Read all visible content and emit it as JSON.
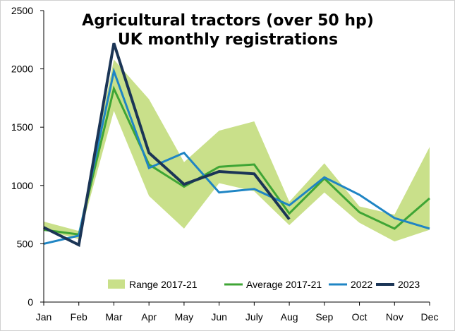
{
  "chart_data": {
    "type": "line",
    "title": "Agricultural tractors (over 50 hp)",
    "subtitle": "UK monthly registrations",
    "xlabel": "",
    "ylabel": "",
    "categories": [
      "Jan",
      "Feb",
      "Mar",
      "Apr",
      "May",
      "Jun",
      "July",
      "Aug",
      "Sep",
      "Oct",
      "Nov",
      "Dec"
    ],
    "ylim": [
      0,
      2500
    ],
    "yticks": [
      0,
      500,
      1000,
      1500,
      2000,
      2500
    ],
    "grid": false,
    "legend_position": "bottom-inside",
    "range": {
      "name": "Range 2017-21",
      "color": "#c9e08a",
      "min": [
        620,
        540,
        1640,
        910,
        630,
        1020,
        950,
        660,
        940,
        680,
        520,
        620
      ],
      "max": [
        690,
        610,
        2080,
        1740,
        1200,
        1470,
        1550,
        860,
        1190,
        820,
        750,
        1330
      ]
    },
    "series": [
      {
        "name": "Average 2017-21",
        "color": "#3fa535",
        "width": 3,
        "values": [
          620,
          580,
          1830,
          1180,
          990,
          1160,
          1180,
          760,
          1060,
          770,
          630,
          890
        ]
      },
      {
        "name": "2022",
        "color": "#1f85c4",
        "width": 3,
        "values": [
          500,
          570,
          1980,
          1150,
          1280,
          940,
          970,
          830,
          1070,
          920,
          720,
          630
        ]
      },
      {
        "name": "2023",
        "color": "#1b3556",
        "width": 4,
        "values": [
          640,
          490,
          2220,
          1280,
          1010,
          1120,
          1100,
          710,
          null,
          null,
          null,
          null
        ]
      }
    ]
  }
}
